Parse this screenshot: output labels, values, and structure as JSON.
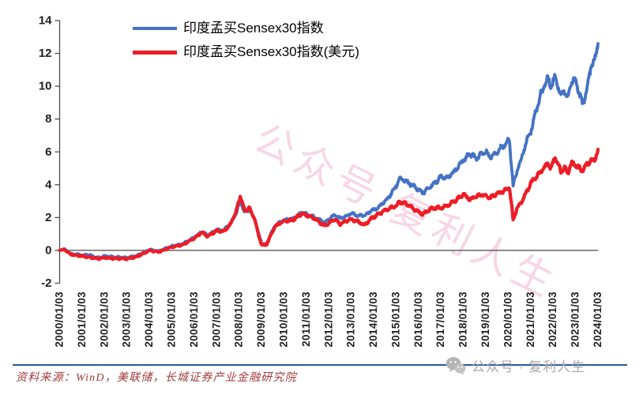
{
  "legend": [
    {
      "label": "印度孟买Sensex30指数",
      "color": "#4472C4"
    },
    {
      "label": "印度孟买Sensex30指数(美元)",
      "color": "#EE1C25"
    }
  ],
  "watermark": {
    "text": "公众号·复利人生",
    "color": "rgba(230,120,170,0.30)"
  },
  "footer": {
    "source_text": "资料来源：WinD，美联储，长城证券产业金融研究院",
    "source_color": "#9E3B39",
    "rule_color": "#2A57A5",
    "wechat_label": "公众号 · 复利人生",
    "wechat_color": "#A9A9A9"
  },
  "chart_data": {
    "type": "line",
    "title": "",
    "grid": false,
    "legend_position": "top-left-inside",
    "baseline": 0,
    "y_axis": {
      "min": -2,
      "max": 14,
      "step": 2,
      "ticks": [
        -2,
        0,
        2,
        4,
        6,
        8,
        10,
        12,
        14
      ]
    },
    "x_axis": {
      "start_year": 2000,
      "end_year": 2024,
      "labels": [
        "2000/01/03",
        "2001/01/03",
        "2002/01/03",
        "2003/01/03",
        "2004/01/03",
        "2005/01/03",
        "2006/01/03",
        "2007/01/03",
        "2008/01/03",
        "2009/01/03",
        "2010/01/03",
        "2011/01/03",
        "2012/01/03",
        "2013/01/03",
        "2014/01/03",
        "2015/01/03",
        "2016/01/03",
        "2017/01/03",
        "2018/01/03",
        "2019/01/03",
        "2020/01/03",
        "2021/01/03",
        "2022/01/03",
        "2023/01/03",
        "2024/01/03"
      ]
    },
    "series": [
      {
        "name": "印度孟买Sensex30指数",
        "color": "#4472C4",
        "width": 3.8,
        "points": [
          [
            2000.0,
            0.0
          ],
          [
            2000.2,
            0.1
          ],
          [
            2000.5,
            -0.2
          ],
          [
            2000.8,
            -0.25
          ],
          [
            2001.0,
            -0.3
          ],
          [
            2001.3,
            -0.25
          ],
          [
            2001.7,
            -0.45
          ],
          [
            2002.0,
            -0.35
          ],
          [
            2002.5,
            -0.42
          ],
          [
            2003.0,
            -0.45
          ],
          [
            2003.4,
            -0.35
          ],
          [
            2003.8,
            -0.1
          ],
          [
            2004.0,
            0.05
          ],
          [
            2004.4,
            -0.05
          ],
          [
            2004.8,
            0.15
          ],
          [
            2005.0,
            0.25
          ],
          [
            2005.5,
            0.4
          ],
          [
            2006.0,
            0.8
          ],
          [
            2006.35,
            1.15
          ],
          [
            2006.6,
            0.9
          ],
          [
            2007.0,
            1.25
          ],
          [
            2007.3,
            1.2
          ],
          [
            2007.6,
            1.6
          ],
          [
            2007.85,
            2.2
          ],
          [
            2008.05,
            3.0
          ],
          [
            2008.25,
            2.3
          ],
          [
            2008.45,
            2.5
          ],
          [
            2008.7,
            1.9
          ],
          [
            2008.85,
            1.1
          ],
          [
            2009.0,
            0.45
          ],
          [
            2009.2,
            0.35
          ],
          [
            2009.45,
            1.1
          ],
          [
            2009.6,
            1.5
          ],
          [
            2010.0,
            1.85
          ],
          [
            2010.4,
            1.9
          ],
          [
            2010.8,
            2.3
          ],
          [
            2011.0,
            2.2
          ],
          [
            2011.4,
            2.0
          ],
          [
            2011.8,
            1.7
          ],
          [
            2012.0,
            1.9
          ],
          [
            2012.25,
            2.15
          ],
          [
            2012.5,
            1.95
          ],
          [
            2012.8,
            2.1
          ],
          [
            2013.0,
            2.25
          ],
          [
            2013.3,
            2.1
          ],
          [
            2013.6,
            2.15
          ],
          [
            2013.9,
            2.4
          ],
          [
            2014.2,
            2.6
          ],
          [
            2014.6,
            3.1
          ],
          [
            2015.0,
            3.9
          ],
          [
            2015.15,
            4.4
          ],
          [
            2015.5,
            4.15
          ],
          [
            2015.8,
            3.9
          ],
          [
            2016.0,
            3.7
          ],
          [
            2016.2,
            3.5
          ],
          [
            2016.5,
            3.85
          ],
          [
            2016.8,
            4.2
          ],
          [
            2017.0,
            4.5
          ],
          [
            2017.3,
            4.45
          ],
          [
            2017.6,
            4.8
          ],
          [
            2018.0,
            5.5
          ],
          [
            2018.3,
            5.9
          ],
          [
            2018.6,
            5.6
          ],
          [
            2018.8,
            5.9
          ],
          [
            2019.0,
            6.0
          ],
          [
            2019.2,
            5.7
          ],
          [
            2019.5,
            6.0
          ],
          [
            2019.8,
            6.4
          ],
          [
            2020.05,
            6.7
          ],
          [
            2020.22,
            3.9
          ],
          [
            2020.4,
            4.9
          ],
          [
            2020.6,
            5.6
          ],
          [
            2020.8,
            6.6
          ],
          [
            2021.0,
            7.2
          ],
          [
            2021.2,
            8.3
          ],
          [
            2021.4,
            9.3
          ],
          [
            2021.6,
            10.0
          ],
          [
            2021.75,
            10.5
          ],
          [
            2021.9,
            10.0
          ],
          [
            2022.1,
            10.6
          ],
          [
            2022.35,
            9.4
          ],
          [
            2022.5,
            9.8
          ],
          [
            2022.65,
            9.2
          ],
          [
            2022.8,
            10.2
          ],
          [
            2023.0,
            10.4
          ],
          [
            2023.3,
            8.9
          ],
          [
            2023.5,
            9.7
          ],
          [
            2023.7,
            11.3
          ],
          [
            2023.85,
            11.5
          ],
          [
            2024.0,
            12.6
          ]
        ]
      },
      {
        "name": "印度孟买Sensex30指数(美元)",
        "color": "#EE1C25",
        "width": 4.2,
        "points": [
          [
            2000.0,
            0.0
          ],
          [
            2000.2,
            0.05
          ],
          [
            2000.5,
            -0.25
          ],
          [
            2001.0,
            -0.35
          ],
          [
            2001.7,
            -0.5
          ],
          [
            2002.0,
            -0.45
          ],
          [
            2002.5,
            -0.5
          ],
          [
            2003.0,
            -0.5
          ],
          [
            2003.4,
            -0.4
          ],
          [
            2003.8,
            -0.15
          ],
          [
            2004.0,
            0.0
          ],
          [
            2004.4,
            -0.1
          ],
          [
            2004.8,
            0.1
          ],
          [
            2005.0,
            0.2
          ],
          [
            2005.5,
            0.35
          ],
          [
            2006.0,
            0.75
          ],
          [
            2006.35,
            1.1
          ],
          [
            2006.6,
            0.85
          ],
          [
            2007.0,
            1.2
          ],
          [
            2007.3,
            1.15
          ],
          [
            2007.6,
            1.55
          ],
          [
            2007.85,
            2.3
          ],
          [
            2008.05,
            3.3
          ],
          [
            2008.25,
            2.4
          ],
          [
            2008.45,
            2.6
          ],
          [
            2008.7,
            1.9
          ],
          [
            2008.85,
            1.0
          ],
          [
            2009.0,
            0.35
          ],
          [
            2009.2,
            0.3
          ],
          [
            2009.45,
            1.0
          ],
          [
            2009.6,
            1.45
          ],
          [
            2010.0,
            1.8
          ],
          [
            2010.4,
            1.85
          ],
          [
            2010.8,
            2.25
          ],
          [
            2011.0,
            2.15
          ],
          [
            2011.4,
            1.9
          ],
          [
            2011.8,
            1.5
          ],
          [
            2012.0,
            1.65
          ],
          [
            2012.25,
            1.9
          ],
          [
            2012.5,
            1.6
          ],
          [
            2012.8,
            1.8
          ],
          [
            2013.0,
            1.9
          ],
          [
            2013.3,
            1.75
          ],
          [
            2013.6,
            1.55
          ],
          [
            2013.9,
            1.95
          ],
          [
            2014.2,
            2.2
          ],
          [
            2014.6,
            2.5
          ],
          [
            2015.0,
            2.7
          ],
          [
            2015.15,
            2.95
          ],
          [
            2015.5,
            2.8
          ],
          [
            2015.8,
            2.5
          ],
          [
            2016.0,
            2.35
          ],
          [
            2016.2,
            2.2
          ],
          [
            2016.5,
            2.5
          ],
          [
            2016.8,
            2.6
          ],
          [
            2017.0,
            2.6
          ],
          [
            2017.3,
            2.75
          ],
          [
            2017.6,
            3.0
          ],
          [
            2018.0,
            3.4
          ],
          [
            2018.3,
            3.1
          ],
          [
            2018.6,
            3.3
          ],
          [
            2018.8,
            3.4
          ],
          [
            2019.0,
            3.3
          ],
          [
            2019.2,
            3.2
          ],
          [
            2019.5,
            3.45
          ],
          [
            2019.8,
            3.6
          ],
          [
            2020.05,
            3.9
          ],
          [
            2020.22,
            1.85
          ],
          [
            2020.4,
            2.6
          ],
          [
            2020.6,
            3.0
          ],
          [
            2020.8,
            3.5
          ],
          [
            2021.0,
            4.1
          ],
          [
            2021.2,
            4.4
          ],
          [
            2021.4,
            4.7
          ],
          [
            2021.6,
            5.0
          ],
          [
            2021.75,
            5.3
          ],
          [
            2021.9,
            5.0
          ],
          [
            2022.1,
            5.7
          ],
          [
            2022.35,
            4.8
          ],
          [
            2022.5,
            5.1
          ],
          [
            2022.65,
            4.7
          ],
          [
            2022.8,
            5.3
          ],
          [
            2023.0,
            5.2
          ],
          [
            2023.3,
            4.85
          ],
          [
            2023.5,
            5.2
          ],
          [
            2023.7,
            5.5
          ],
          [
            2023.85,
            5.45
          ],
          [
            2024.0,
            6.15
          ]
        ]
      }
    ]
  }
}
